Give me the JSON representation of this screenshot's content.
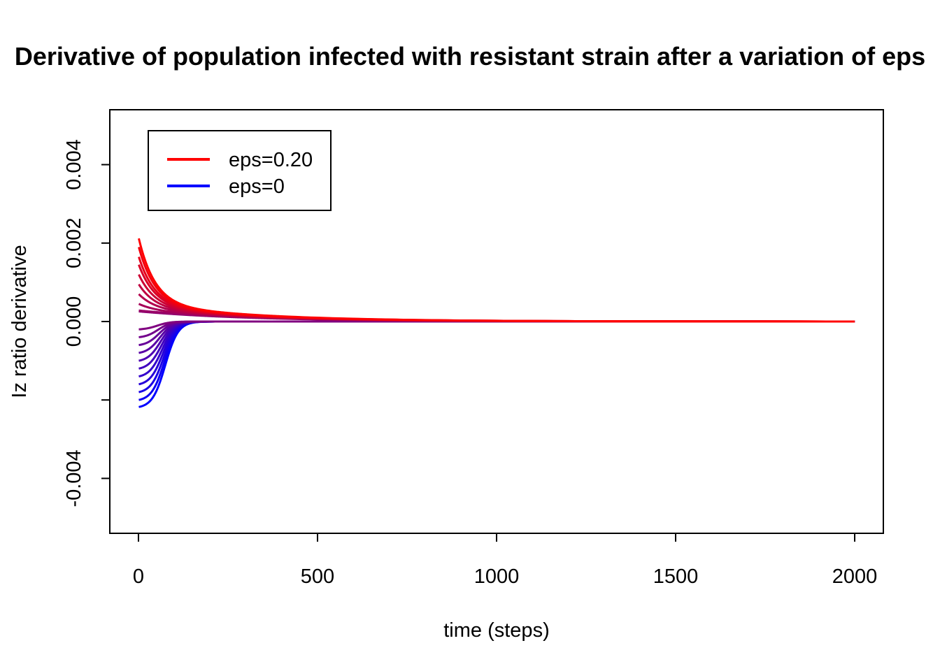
{
  "chart_data": {
    "type": "line",
    "title": "Derivative of population infected with resistant strain after a variation of eps",
    "xlabel": "time (steps)",
    "ylabel": "Iz ratio derivative",
    "xlim": [
      -80,
      2080
    ],
    "ylim": [
      -0.0054,
      0.0054
    ],
    "x_ticks": [
      0,
      500,
      1000,
      1500,
      2000
    ],
    "x_tick_labels": [
      "0",
      "500",
      "1000",
      "1500",
      "2000"
    ],
    "y_ticks": [
      -0.004,
      -0.002,
      0.0,
      0.002,
      0.004
    ],
    "y_tick_labels": [
      "-0.004",
      "",
      "0.000",
      "0.002",
      "0.004"
    ],
    "grid": false,
    "legend_position": "top-left",
    "legend": [
      {
        "label": "eps=0.20",
        "color": "#FF0000"
      },
      {
        "label": "eps=0",
        "color": "#0000FF"
      }
    ],
    "series_family": {
      "description_of_values": "one line per eps value; eps varied in steps of 0.01 from 0 to 0.20",
      "eps_values": [
        0.0,
        0.01,
        0.02,
        0.03,
        0.04,
        0.05,
        0.06,
        0.07,
        0.08,
        0.09,
        0.1,
        0.11,
        0.12,
        0.13,
        0.14,
        0.15,
        0.16,
        0.17,
        0.18,
        0.19,
        0.2
      ],
      "initial_values": [
        -0.00218,
        -0.002,
        -0.0018,
        -0.0016,
        -0.0014,
        -0.0012,
        -0.001,
        -0.0008,
        -0.0006,
        -0.0004,
        -0.0002,
        0.0,
        0.0002,
        0.00045,
        0.0007,
        0.00095,
        0.0012,
        0.00145,
        0.00165,
        0.0019,
        0.00212
      ],
      "x_start": 1,
      "x_end": 2000,
      "color_eps_0": "#0000FF",
      "color_eps_max": "#FF0000",
      "tail_value_eps_max_t200": 0.00025,
      "tail_value_eps_max_t1000": 2e-05
    }
  }
}
